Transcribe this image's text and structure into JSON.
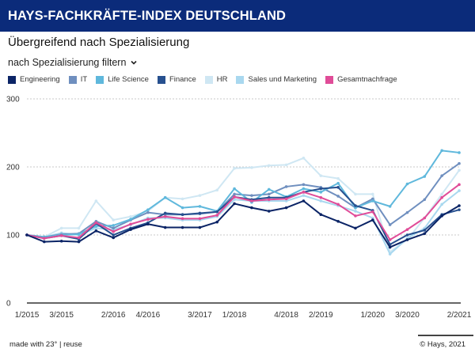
{
  "header": {
    "title": "HAYS-FACHKRÄFTE-INDEX DEUTSCHLAND"
  },
  "subtitle": "Übergreifend nach Spezialisierung",
  "filter": {
    "label": "nach Spezialisierung filtern",
    "icon": "chevron-down-icon"
  },
  "footer": {
    "made_with": "made with 23°",
    "separator": "|",
    "reuse": "reuse",
    "copyright": "© Hays, 2021"
  },
  "chart_data": {
    "type": "line",
    "title": "Übergreifend nach Spezialisierung",
    "xlabel": "",
    "ylabel": "",
    "ylim": [
      0,
      300
    ],
    "yticks": [
      0,
      100,
      200,
      300
    ],
    "grid": true,
    "legend_position": "top-left",
    "x": [
      "1/2015",
      "2/2015",
      "3/2015",
      "4/2015",
      "1/2016",
      "2/2016",
      "3/2016",
      "4/2016",
      "1/2017",
      "2/2017",
      "3/2017",
      "4/2017",
      "1/2018",
      "2/2018",
      "3/2018",
      "4/2018",
      "1/2019",
      "2/2019",
      "3/2019",
      "4/2019",
      "1/2020",
      "2/2020",
      "3/2020",
      "4/2020",
      "1/2021",
      "2/2021"
    ],
    "xtick_labels": [
      "1/2015",
      "3/2015",
      "2/2016",
      "4/2016",
      "3/2017",
      "1/2018",
      "4/2018",
      "2/2019",
      "1/2020",
      "3/2020",
      "2/2021"
    ],
    "series": [
      {
        "name": "Engineering",
        "color": "#0b2466",
        "values": [
          100,
          90,
          91,
          90,
          106,
          96,
          108,
          116,
          111,
          111,
          111,
          119,
          146,
          140,
          135,
          140,
          150,
          130,
          120,
          110,
          122,
          82,
          93,
          102,
          128,
          143
        ]
      },
      {
        "name": "IT",
        "color": "#6f8fbf",
        "values": [
          100,
          97,
          101,
          102,
          120,
          110,
          122,
          133,
          130,
          130,
          131,
          134,
          160,
          158,
          160,
          171,
          174,
          170,
          157,
          140,
          153,
          115,
          133,
          152,
          187,
          205
        ]
      },
      {
        "name": "Life Science",
        "color": "#5fb8dc",
        "values": [
          100,
          97,
          100,
          101,
          113,
          114,
          123,
          137,
          155,
          140,
          142,
          135,
          168,
          148,
          167,
          156,
          168,
          163,
          176,
          140,
          150,
          142,
          175,
          186,
          224,
          221
        ]
      },
      {
        "name": "Finance",
        "color": "#27508f",
        "values": [
          100,
          95,
          99,
          94,
          117,
          100,
          110,
          118,
          132,
          130,
          132,
          134,
          156,
          152,
          155,
          155,
          163,
          168,
          170,
          143,
          136,
          86,
          100,
          107,
          130,
          137
        ]
      },
      {
        "name": "HR",
        "color": "#cfe7f3",
        "values": [
          100,
          97,
          110,
          110,
          150,
          122,
          127,
          135,
          155,
          153,
          158,
          166,
          198,
          199,
          202,
          203,
          213,
          187,
          183,
          160,
          160,
          75,
          93,
          125,
          160,
          195
        ]
      },
      {
        "name": "Sales und Marketing",
        "color": "#a9d8ef",
        "values": [
          100,
          97,
          103,
          100,
          110,
          108,
          115,
          125,
          125,
          122,
          122,
          127,
          152,
          150,
          150,
          150,
          158,
          150,
          143,
          135,
          125,
          72,
          95,
          110,
          145,
          165
        ]
      },
      {
        "name": "Gesamtnachfrage",
        "color": "#e04c98",
        "values": [
          100,
          95,
          99,
          96,
          118,
          105,
          116,
          123,
          127,
          124,
          124,
          129,
          156,
          150,
          152,
          153,
          163,
          155,
          145,
          128,
          134,
          93,
          108,
          125,
          155,
          174
        ]
      }
    ]
  }
}
